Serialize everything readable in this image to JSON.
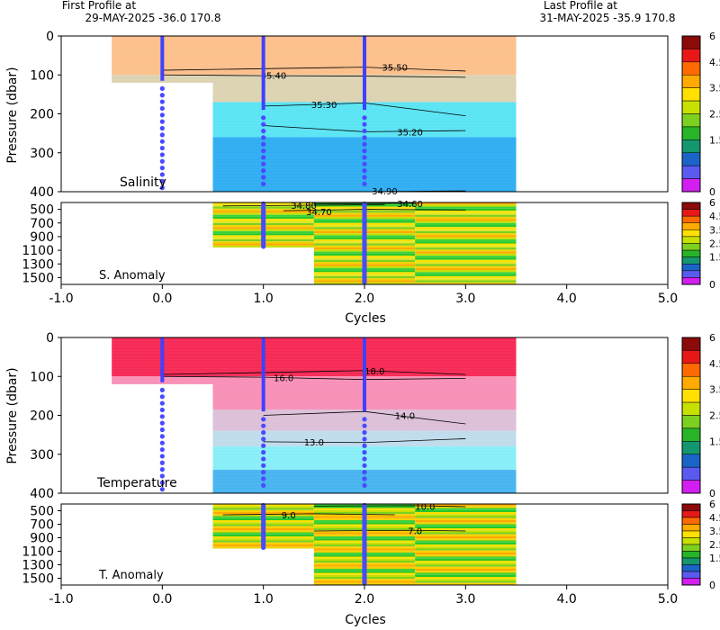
{
  "header": {
    "first_title": "First Profile at",
    "first_detail": "29-MAY-2025    -36.0  170.8",
    "last_title": "Last Profile at",
    "last_detail": "31-MAY-2025    -35.9  170.8"
  },
  "chart_data": [
    {
      "type": "heatmap",
      "panel": "Salinity",
      "label": "Salinity",
      "ylabel": "Pressure (dbar)",
      "xlim": [
        -1.0,
        5.0
      ],
      "ylim": [
        0,
        400
      ],
      "yticks": [
        "0",
        "100",
        "200",
        "300",
        "400"
      ],
      "profile_cycles": [
        0,
        1,
        2
      ],
      "profile_depth_max": [
        115,
        190,
        190
      ],
      "column_depth_max": [
        120,
        400,
        400,
        400
      ],
      "contours": [
        {
          "label": "35.50",
          "values": [
            35.5
          ]
        },
        {
          "label": "35.40",
          "values": [
            35.4
          ]
        },
        {
          "label": "35.30",
          "values": [
            35.3
          ]
        },
        {
          "label": "35.20",
          "values": [
            35.2
          ]
        },
        {
          "label": "34.90",
          "values": [
            34.9
          ]
        }
      ],
      "colors": {
        "upper": "#fcc08c",
        "mid": "#dcd3b2",
        "cyan": "#5ae4f4",
        "blue": "#30aef2"
      }
    },
    {
      "type": "heatmap",
      "panel": "S. Anomaly",
      "label": "S. Anomaly",
      "ylim": [
        400,
        1600
      ],
      "yticks": [
        "500",
        "700",
        "900",
        "1100",
        "1300",
        "1500"
      ],
      "contours": [
        {
          "label": "34.80",
          "values": [
            34.8
          ]
        },
        {
          "label": "34.70",
          "values": [
            34.7
          ]
        },
        {
          "label": "34.60",
          "values": [
            34.6
          ]
        }
      ]
    },
    {
      "type": "heatmap",
      "panel": "Temperature",
      "label": "Temperature",
      "ylabel": "Pressure (dbar)",
      "xlim": [
        -1.0,
        5.0
      ],
      "ylim": [
        0,
        400
      ],
      "yticks": [
        "0",
        "100",
        "200",
        "300",
        "400"
      ],
      "profile_cycles": [
        0,
        1,
        2
      ],
      "profile_depth_max": [
        115,
        190,
        190
      ],
      "contours": [
        {
          "label": "18.0",
          "values": [
            18.0
          ]
        },
        {
          "label": "16.0",
          "values": [
            16.0
          ]
        },
        {
          "label": "14.0",
          "values": [
            14.0
          ]
        },
        {
          "label": "13.0",
          "values": [
            13.0
          ]
        }
      ],
      "colors": {
        "upper": "#f62a55",
        "pink": "#f890b8",
        "light": "#dcc0d8",
        "cyan": "#88eef8",
        "blue": "#48b4f0"
      }
    },
    {
      "type": "heatmap",
      "panel": "T. Anomaly",
      "label": "T. Anomaly",
      "xlabel": "Cycles",
      "ylim": [
        400,
        1600
      ],
      "yticks": [
        "500",
        "700",
        "900",
        "1100",
        "1300",
        "1500"
      ],
      "xticks": [
        "-1.0",
        "0.0",
        "1.0",
        "2.0",
        "3.0",
        "4.0",
        "5.0"
      ],
      "contours": [
        {
          "label": "10.0",
          "values": [
            10.0
          ]
        },
        {
          "label": "9.0",
          "values": [
            9.0
          ]
        },
        {
          "label": "7.0",
          "values": [
            7.0
          ]
        }
      ]
    }
  ],
  "colorbar": {
    "ticks": [
      "6",
      "4.5",
      "3.5",
      "2.5",
      "1.5",
      "0"
    ],
    "colors": [
      "#8b0a0a",
      "#e81818",
      "#ff6a00",
      "#ffaa00",
      "#ffe000",
      "#c8e000",
      "#7cd020",
      "#28b428",
      "#14966e",
      "#1a64c8",
      "#5a5af0",
      "#d21ef0"
    ]
  },
  "xlabel": "Cycles"
}
